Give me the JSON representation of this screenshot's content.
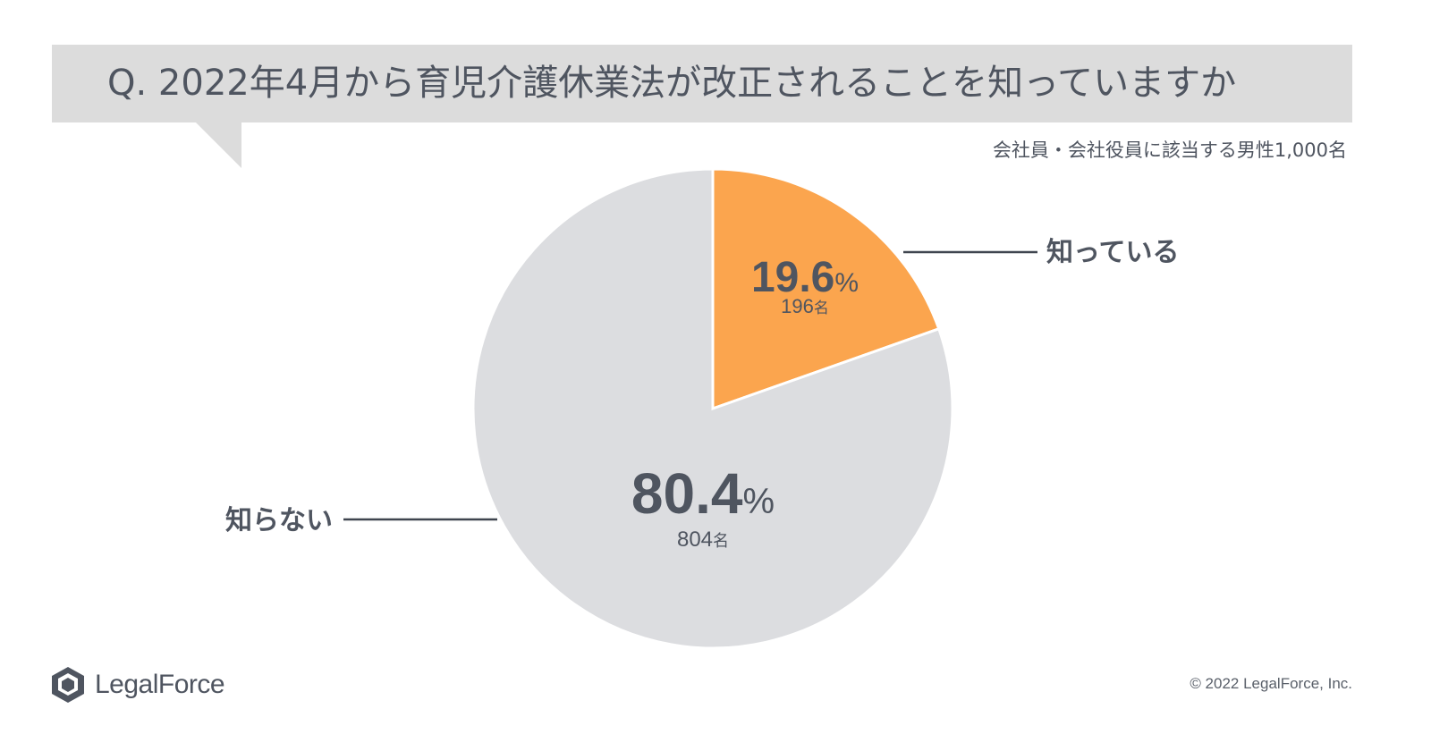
{
  "question": "Q. 2022年4月から育児介護休業法が改正されることを知っていますか",
  "sample_note": "会社員・会社役員に該当する男性1,000名",
  "logo": {
    "text": "LegalForce",
    "icon": "legalforce-cube-icon"
  },
  "copyright": "© 2022 LegalForce, Inc.",
  "colors": {
    "known": "#fba54e",
    "unknown": "#dcdde0",
    "banner": "#dcdcdc",
    "text": "#4f5560"
  },
  "chart_data": {
    "type": "pie",
    "slices": [
      {
        "label": "知っている",
        "percent": 19.6,
        "percent_text": "19.6",
        "count_text": "196",
        "unit": "名"
      },
      {
        "label": "知らない",
        "percent": 80.4,
        "percent_text": "80.4",
        "count_text": "804",
        "unit": "名"
      }
    ],
    "percent_suffix": "%",
    "start": "12 o'clock, clockwise"
  }
}
